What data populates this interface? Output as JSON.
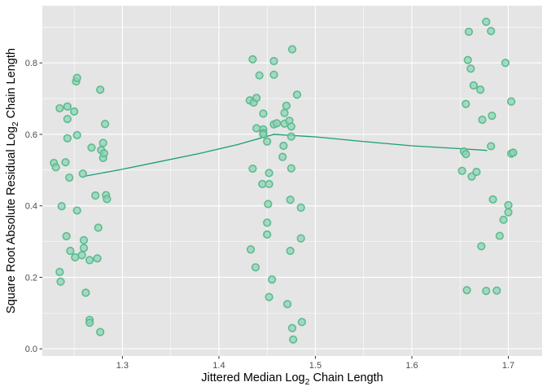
{
  "chart_data": {
    "type": "scatter",
    "title": "",
    "xlabel": {
      "prefix": "Jittered Median Log",
      "subscript": "2",
      "suffix": " Chain Length"
    },
    "ylabel": {
      "prefix": "Square Root Absolute Residual Log",
      "subscript": "2",
      "suffix": " Chain Length"
    },
    "xlim": [
      1.217,
      1.735
    ],
    "ylim": [
      -0.02,
      0.96
    ],
    "x_ticks": [
      1.3,
      1.4,
      1.5,
      1.6,
      1.7
    ],
    "x_tick_labels": [
      "1.3",
      "1.4",
      "1.5",
      "1.6",
      "1.7"
    ],
    "y_ticks": [
      0.0,
      0.2,
      0.4,
      0.6,
      0.8
    ],
    "y_tick_labels": [
      "0.0",
      "0.2",
      "0.4",
      "0.6",
      "0.8"
    ],
    "grid": true,
    "legend": "none",
    "colors": {
      "panel_background": "#e5e5e5",
      "grid_line": "#ffffff",
      "point_fill": "#8dd3b5",
      "point_stroke": "#5dbb8f",
      "smooth_line": "#1b9e77",
      "tick_label": "#4d4d4d",
      "axis_title": "#000000"
    },
    "points": [
      {
        "x": 1.229,
        "y": 0.52
      },
      {
        "x": 1.231,
        "y": 0.508
      },
      {
        "x": 1.235,
        "y": 0.673
      },
      {
        "x": 1.237,
        "y": 0.399
      },
      {
        "x": 1.235,
        "y": 0.215
      },
      {
        "x": 1.236,
        "y": 0.188
      },
      {
        "x": 1.241,
        "y": 0.522
      },
      {
        "x": 1.242,
        "y": 0.315
      },
      {
        "x": 1.243,
        "y": 0.678
      },
      {
        "x": 1.243,
        "y": 0.643
      },
      {
        "x": 1.243,
        "y": 0.589
      },
      {
        "x": 1.245,
        "y": 0.479
      },
      {
        "x": 1.246,
        "y": 0.274
      },
      {
        "x": 1.25,
        "y": 0.664
      },
      {
        "x": 1.251,
        "y": 0.256
      },
      {
        "x": 1.252,
        "y": 0.748
      },
      {
        "x": 1.253,
        "y": 0.758
      },
      {
        "x": 1.253,
        "y": 0.598
      },
      {
        "x": 1.253,
        "y": 0.387
      },
      {
        "x": 1.258,
        "y": 0.262
      },
      {
        "x": 1.259,
        "y": 0.49
      },
      {
        "x": 1.26,
        "y": 0.282
      },
      {
        "x": 1.26,
        "y": 0.304
      },
      {
        "x": 1.262,
        "y": 0.157
      },
      {
        "x": 1.266,
        "y": 0.081
      },
      {
        "x": 1.266,
        "y": 0.073
      },
      {
        "x": 1.266,
        "y": 0.248
      },
      {
        "x": 1.268,
        "y": 0.563
      },
      {
        "x": 1.272,
        "y": 0.429
      },
      {
        "x": 1.274,
        "y": 0.253
      },
      {
        "x": 1.275,
        "y": 0.339
      },
      {
        "x": 1.277,
        "y": 0.725
      },
      {
        "x": 1.277,
        "y": 0.047
      },
      {
        "x": 1.278,
        "y": 0.556
      },
      {
        "x": 1.28,
        "y": 0.576
      },
      {
        "x": 1.28,
        "y": 0.534
      },
      {
        "x": 1.281,
        "y": 0.547
      },
      {
        "x": 1.282,
        "y": 0.629
      },
      {
        "x": 1.283,
        "y": 0.43
      },
      {
        "x": 1.284,
        "y": 0.419
      },
      {
        "x": 1.432,
        "y": 0.695
      },
      {
        "x": 1.433,
        "y": 0.278
      },
      {
        "x": 1.435,
        "y": 0.81
      },
      {
        "x": 1.435,
        "y": 0.504
      },
      {
        "x": 1.436,
        "y": 0.689
      },
      {
        "x": 1.438,
        "y": 0.228
      },
      {
        "x": 1.439,
        "y": 0.702
      },
      {
        "x": 1.439,
        "y": 0.617
      },
      {
        "x": 1.442,
        "y": 0.765
      },
      {
        "x": 1.445,
        "y": 0.461
      },
      {
        "x": 1.446,
        "y": 0.614
      },
      {
        "x": 1.446,
        "y": 0.604
      },
      {
        "x": 1.446,
        "y": 0.658
      },
      {
        "x": 1.446,
        "y": 0.6
      },
      {
        "x": 1.45,
        "y": 0.58
      },
      {
        "x": 1.45,
        "y": 0.32
      },
      {
        "x": 1.45,
        "y": 0.353
      },
      {
        "x": 1.451,
        "y": 0.405
      },
      {
        "x": 1.452,
        "y": 0.492
      },
      {
        "x": 1.452,
        "y": 0.461
      },
      {
        "x": 1.452,
        "y": 0.145
      },
      {
        "x": 1.455,
        "y": 0.194
      },
      {
        "x": 1.457,
        "y": 0.805
      },
      {
        "x": 1.457,
        "y": 0.767
      },
      {
        "x": 1.457,
        "y": 0.628
      },
      {
        "x": 1.46,
        "y": 0.631
      },
      {
        "x": 1.466,
        "y": 0.537
      },
      {
        "x": 1.467,
        "y": 0.568
      },
      {
        "x": 1.468,
        "y": 0.63
      },
      {
        "x": 1.468,
        "y": 0.66
      },
      {
        "x": 1.47,
        "y": 0.68
      },
      {
        "x": 1.471,
        "y": 0.125
      },
      {
        "x": 1.473,
        "y": 0.638
      },
      {
        "x": 1.474,
        "y": 0.417
      },
      {
        "x": 1.474,
        "y": 0.274
      },
      {
        "x": 1.475,
        "y": 0.594
      },
      {
        "x": 1.475,
        "y": 0.622
      },
      {
        "x": 1.475,
        "y": 0.505
      },
      {
        "x": 1.476,
        "y": 0.058
      },
      {
        "x": 1.476,
        "y": 0.838
      },
      {
        "x": 1.477,
        "y": 0.026
      },
      {
        "x": 1.481,
        "y": 0.711
      },
      {
        "x": 1.485,
        "y": 0.395
      },
      {
        "x": 1.485,
        "y": 0.309
      },
      {
        "x": 1.486,
        "y": 0.075
      },
      {
        "x": 1.652,
        "y": 0.498
      },
      {
        "x": 1.654,
        "y": 0.552
      },
      {
        "x": 1.656,
        "y": 0.685
      },
      {
        "x": 1.656,
        "y": 0.545
      },
      {
        "x": 1.657,
        "y": 0.164
      },
      {
        "x": 1.658,
        "y": 0.808
      },
      {
        "x": 1.659,
        "y": 0.887
      },
      {
        "x": 1.661,
        "y": 0.784
      },
      {
        "x": 1.662,
        "y": 0.482
      },
      {
        "x": 1.664,
        "y": 0.737
      },
      {
        "x": 1.667,
        "y": 0.495
      },
      {
        "x": 1.671,
        "y": 0.725
      },
      {
        "x": 1.672,
        "y": 0.287
      },
      {
        "x": 1.673,
        "y": 0.641
      },
      {
        "x": 1.677,
        "y": 0.915
      },
      {
        "x": 1.677,
        "y": 0.162
      },
      {
        "x": 1.682,
        "y": 0.889
      },
      {
        "x": 1.682,
        "y": 0.567
      },
      {
        "x": 1.683,
        "y": 0.652
      },
      {
        "x": 1.684,
        "y": 0.418
      },
      {
        "x": 1.688,
        "y": 0.163
      },
      {
        "x": 1.691,
        "y": 0.316
      },
      {
        "x": 1.695,
        "y": 0.361
      },
      {
        "x": 1.697,
        "y": 0.8
      },
      {
        "x": 1.7,
        "y": 0.382
      },
      {
        "x": 1.7,
        "y": 0.402
      },
      {
        "x": 1.703,
        "y": 0.692
      },
      {
        "x": 1.703,
        "y": 0.546
      },
      {
        "x": 1.705,
        "y": 0.549
      }
    ],
    "smooth_line": [
      {
        "x": 1.259,
        "y": 0.482
      },
      {
        "x": 1.299,
        "y": 0.502
      },
      {
        "x": 1.339,
        "y": 0.524
      },
      {
        "x": 1.379,
        "y": 0.546
      },
      {
        "x": 1.419,
        "y": 0.571
      },
      {
        "x": 1.457,
        "y": 0.6
      },
      {
        "x": 1.5,
        "y": 0.593
      },
      {
        "x": 1.55,
        "y": 0.58
      },
      {
        "x": 1.6,
        "y": 0.568
      },
      {
        "x": 1.65,
        "y": 0.56
      },
      {
        "x": 1.678,
        "y": 0.555
      }
    ]
  }
}
